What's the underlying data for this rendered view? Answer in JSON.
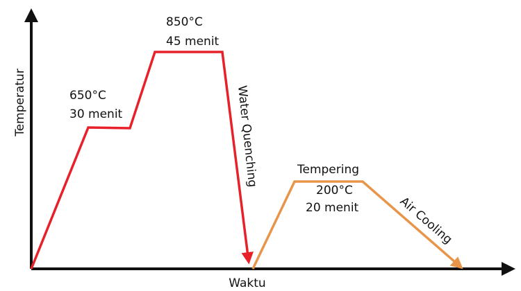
{
  "axes": {
    "y_label": "Temperatur",
    "x_label": "Waktu"
  },
  "stages": {
    "hold_650": {
      "temperature": "650°C",
      "duration": "30 menit"
    },
    "hold_850": {
      "temperature": "850°C",
      "duration": "45 menit"
    },
    "quench": {
      "label": "Water Quenching"
    },
    "tempering": {
      "title": "Tempering",
      "temperature": "200°C",
      "duration": "20 menit"
    },
    "cooling": {
      "label": "Air Cooling"
    }
  },
  "colors": {
    "hardening_curve": "#e8202a",
    "tempering_curve": "#e8954a",
    "axis": "#111111"
  }
}
